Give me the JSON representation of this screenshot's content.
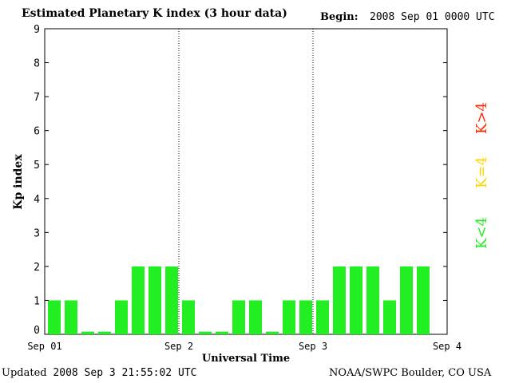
{
  "header": {
    "title": "Estimated Planetary K index (3 hour data)",
    "begin_label": "Begin:",
    "begin_value": "2008 Sep 01 0000 UTC"
  },
  "footer": {
    "updated_label": "Updated",
    "updated_value": "2008 Sep  3 21:55:02 UTC",
    "credit": "NOAA/SWPC Boulder, CO USA"
  },
  "legend": {
    "items": [
      {
        "label": "K>4",
        "color": "#ff2a00"
      },
      {
        "label": "K=4",
        "color": "#ffd700"
      },
      {
        "label": "K<4",
        "color": "#22ee22"
      }
    ]
  },
  "chart_data": {
    "type": "bar",
    "title": "Estimated Planetary K index (3 hour data)",
    "xlabel": "Universal Time",
    "ylabel": "Kp index",
    "ylim": [
      0,
      9
    ],
    "yticks": [
      "0",
      "1",
      "2",
      "3",
      "4",
      "5",
      "6",
      "7",
      "8",
      "9"
    ],
    "xticks": [
      "Sep 01",
      "Sep 2",
      "Sep 3",
      "Sep 4"
    ],
    "interval_hours": 3,
    "bar_color": "#22ee22",
    "values": [
      1,
      1,
      0.08,
      0.08,
      1,
      2,
      2,
      2,
      1,
      0.08,
      0.08,
      1,
      1,
      0.08,
      1,
      1,
      1,
      2,
      2,
      2,
      1,
      2,
      2
    ]
  }
}
